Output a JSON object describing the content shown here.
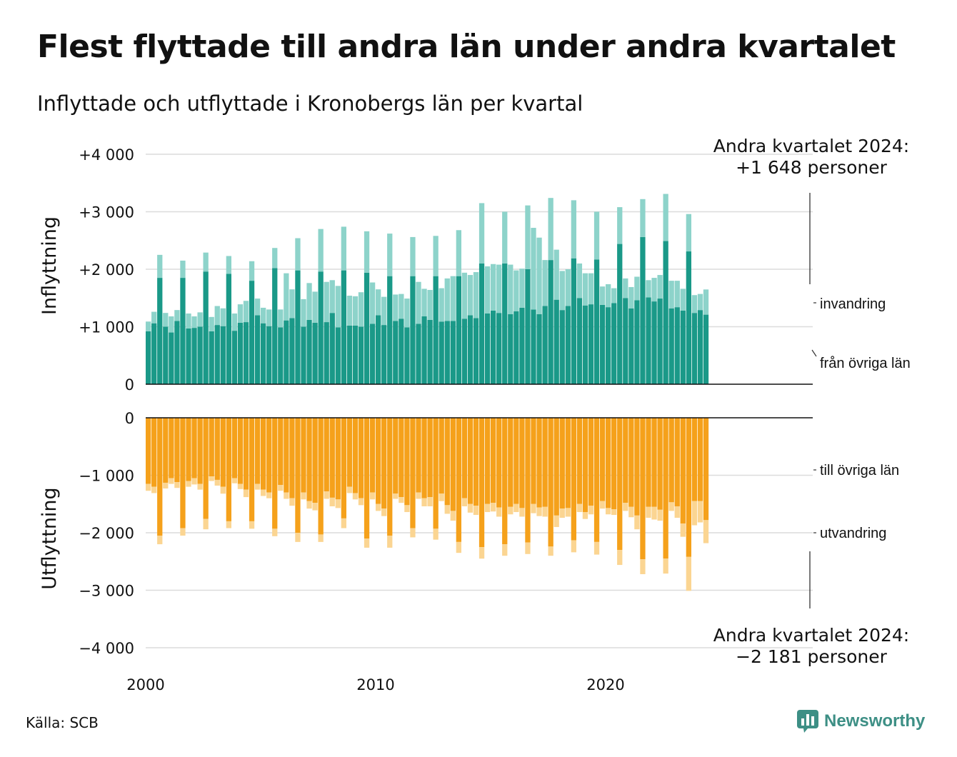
{
  "header": {
    "title": "Flest flyttade till andra län under andra kvartalet",
    "subtitle": "Inflyttade och utflyttade i Kronobergs län per kvartal"
  },
  "footer": {
    "source": "Källa: SCB",
    "logo_text": "Newsworthy"
  },
  "colors": {
    "inflow_domestic": "#1a9988",
    "inflow_immigration": "#8dd3ca",
    "outflow_domestic": "#f5a11b",
    "outflow_emigration": "#fbd592"
  },
  "chart_data": {
    "type": "bar",
    "stacked": true,
    "x_label": "",
    "x_ticks": [
      "2000",
      "2010",
      "2020"
    ],
    "top_panel": {
      "ylabel": "Inflyttning",
      "ylim": [
        0,
        4000
      ],
      "y_ticks": [
        "0",
        "+1 000",
        "+2 000",
        "+3 000",
        "+4 000"
      ],
      "y_tick_values": [
        0,
        1000,
        2000,
        3000,
        4000
      ],
      "series_names": [
        "från övriga län",
        "invandring"
      ],
      "annotation": [
        "Andra kvartalet 2024:",
        "+1 648 personer"
      ]
    },
    "bottom_panel": {
      "ylabel": "Utflyttning",
      "ylim": [
        -4000,
        0
      ],
      "y_ticks": [
        "0",
        "−1 000",
        "−2 000",
        "−3 000",
        "−4 000"
      ],
      "y_tick_values": [
        0,
        -1000,
        -2000,
        -3000,
        -4000
      ],
      "series_names": [
        "till övriga län",
        "utvandring"
      ],
      "annotation": [
        "Andra kvartalet 2024:",
        "−2 181 personer"
      ]
    },
    "quarters": [
      {
        "q": "2000 Q1",
        "in_dom": 920,
        "in_imm": 170,
        "out_dom": 1150,
        "out_emi": 120
      },
      {
        "q": "2000 Q2",
        "in_dom": 1060,
        "in_imm": 200,
        "out_dom": 1200,
        "out_emi": 110
      },
      {
        "q": "2000 Q3",
        "in_dom": 1850,
        "in_imm": 400,
        "out_dom": 2050,
        "out_emi": 150
      },
      {
        "q": "2000 Q4",
        "in_dom": 1000,
        "in_imm": 240,
        "out_dom": 1130,
        "out_emi": 100
      },
      {
        "q": "2001 Q1",
        "in_dom": 900,
        "in_imm": 280,
        "out_dom": 1050,
        "out_emi": 100
      },
      {
        "q": "2001 Q2",
        "in_dom": 1100,
        "in_imm": 190,
        "out_dom": 1120,
        "out_emi": 100
      },
      {
        "q": "2001 Q3",
        "in_dom": 1850,
        "in_imm": 300,
        "out_dom": 1920,
        "out_emi": 130
      },
      {
        "q": "2001 Q4",
        "in_dom": 970,
        "in_imm": 260,
        "out_dom": 1100,
        "out_emi": 100
      },
      {
        "q": "2002 Q1",
        "in_dom": 980,
        "in_imm": 200,
        "out_dom": 1050,
        "out_emi": 110
      },
      {
        "q": "2002 Q2",
        "in_dom": 1000,
        "in_imm": 250,
        "out_dom": 1150,
        "out_emi": 100
      },
      {
        "q": "2002 Q3",
        "in_dom": 1960,
        "in_imm": 330,
        "out_dom": 1760,
        "out_emi": 180
      },
      {
        "q": "2002 Q4",
        "in_dom": 920,
        "in_imm": 250,
        "out_dom": 1020,
        "out_emi": 80
      },
      {
        "q": "2003 Q1",
        "in_dom": 1030,
        "in_imm": 330,
        "out_dom": 1080,
        "out_emi": 100
      },
      {
        "q": "2003 Q2",
        "in_dom": 1010,
        "in_imm": 310,
        "out_dom": 1200,
        "out_emi": 120
      },
      {
        "q": "2003 Q3",
        "in_dom": 1920,
        "in_imm": 310,
        "out_dom": 1800,
        "out_emi": 120
      },
      {
        "q": "2003 Q4",
        "in_dom": 930,
        "in_imm": 300,
        "out_dom": 1050,
        "out_emi": 90
      },
      {
        "q": "2004 Q1",
        "in_dom": 1070,
        "in_imm": 320,
        "out_dom": 1150,
        "out_emi": 90
      },
      {
        "q": "2004 Q2",
        "in_dom": 1080,
        "in_imm": 370,
        "out_dom": 1250,
        "out_emi": 130
      },
      {
        "q": "2004 Q3",
        "in_dom": 1800,
        "in_imm": 340,
        "out_dom": 1800,
        "out_emi": 130
      },
      {
        "q": "2004 Q4",
        "in_dom": 1200,
        "in_imm": 290,
        "out_dom": 1150,
        "out_emi": 100
      },
      {
        "q": "2005 Q1",
        "in_dom": 1060,
        "in_imm": 270,
        "out_dom": 1250,
        "out_emi": 110
      },
      {
        "q": "2005 Q2",
        "in_dom": 1010,
        "in_imm": 290,
        "out_dom": 1300,
        "out_emi": 100
      },
      {
        "q": "2005 Q3",
        "in_dom": 2020,
        "in_imm": 350,
        "out_dom": 1930,
        "out_emi": 130
      },
      {
        "q": "2005 Q4",
        "in_dom": 990,
        "in_imm": 310,
        "out_dom": 1170,
        "out_emi": 100
      },
      {
        "q": "2006 Q1",
        "in_dom": 1110,
        "in_imm": 820,
        "out_dom": 1300,
        "out_emi": 110
      },
      {
        "q": "2006 Q2",
        "in_dom": 1150,
        "in_imm": 500,
        "out_dom": 1400,
        "out_emi": 130
      },
      {
        "q": "2006 Q3",
        "in_dom": 1980,
        "in_imm": 560,
        "out_dom": 2000,
        "out_emi": 160
      },
      {
        "q": "2006 Q4",
        "in_dom": 1000,
        "in_imm": 480,
        "out_dom": 1300,
        "out_emi": 120
      },
      {
        "q": "2007 Q1",
        "in_dom": 1120,
        "in_imm": 640,
        "out_dom": 1450,
        "out_emi": 130
      },
      {
        "q": "2007 Q2",
        "in_dom": 1070,
        "in_imm": 540,
        "out_dom": 1480,
        "out_emi": 130
      },
      {
        "q": "2007 Q3",
        "in_dom": 1960,
        "in_imm": 740,
        "out_dom": 2030,
        "out_emi": 130
      },
      {
        "q": "2007 Q4",
        "in_dom": 1080,
        "in_imm": 700,
        "out_dom": 1280,
        "out_emi": 130
      },
      {
        "q": "2008 Q1",
        "in_dom": 1240,
        "in_imm": 570,
        "out_dom": 1390,
        "out_emi": 150
      },
      {
        "q": "2008 Q2",
        "in_dom": 990,
        "in_imm": 720,
        "out_dom": 1420,
        "out_emi": 150
      },
      {
        "q": "2008 Q3",
        "in_dom": 1980,
        "in_imm": 760,
        "out_dom": 1750,
        "out_emi": 170
      },
      {
        "q": "2008 Q4",
        "in_dom": 1020,
        "in_imm": 520,
        "out_dom": 1200,
        "out_emi": 110
      },
      {
        "q": "2009 Q1",
        "in_dom": 1020,
        "in_imm": 510,
        "out_dom": 1310,
        "out_emi": 110
      },
      {
        "q": "2009 Q2",
        "in_dom": 1000,
        "in_imm": 600,
        "out_dom": 1400,
        "out_emi": 120
      },
      {
        "q": "2009 Q3",
        "in_dom": 1940,
        "in_imm": 720,
        "out_dom": 2100,
        "out_emi": 160
      },
      {
        "q": "2009 Q4",
        "in_dom": 1050,
        "in_imm": 720,
        "out_dom": 1300,
        "out_emi": 120
      },
      {
        "q": "2010 Q1",
        "in_dom": 1200,
        "in_imm": 450,
        "out_dom": 1500,
        "out_emi": 120
      },
      {
        "q": "2010 Q2",
        "in_dom": 1030,
        "in_imm": 490,
        "out_dom": 1580,
        "out_emi": 130
      },
      {
        "q": "2010 Q3",
        "in_dom": 1880,
        "in_imm": 740,
        "out_dom": 2050,
        "out_emi": 210
      },
      {
        "q": "2010 Q4",
        "in_dom": 1100,
        "in_imm": 460,
        "out_dom": 1320,
        "out_emi": 90
      },
      {
        "q": "2011 Q1",
        "in_dom": 1140,
        "in_imm": 430,
        "out_dom": 1380,
        "out_emi": 100
      },
      {
        "q": "2011 Q2",
        "in_dom": 990,
        "in_imm": 500,
        "out_dom": 1520,
        "out_emi": 120
      },
      {
        "q": "2011 Q3",
        "in_dom": 1880,
        "in_imm": 680,
        "out_dom": 1920,
        "out_emi": 160
      },
      {
        "q": "2011 Q4",
        "in_dom": 1050,
        "in_imm": 730,
        "out_dom": 1300,
        "out_emi": 110
      },
      {
        "q": "2012 Q1",
        "in_dom": 1180,
        "in_imm": 480,
        "out_dom": 1400,
        "out_emi": 140
      },
      {
        "q": "2012 Q2",
        "in_dom": 1120,
        "in_imm": 520,
        "out_dom": 1380,
        "out_emi": 160
      },
      {
        "q": "2012 Q3",
        "in_dom": 1880,
        "in_imm": 700,
        "out_dom": 1930,
        "out_emi": 190
      },
      {
        "q": "2012 Q4",
        "in_dom": 1090,
        "in_imm": 580,
        "out_dom": 1320,
        "out_emi": 130
      },
      {
        "q": "2013 Q1",
        "in_dom": 1100,
        "in_imm": 740,
        "out_dom": 1520,
        "out_emi": 150
      },
      {
        "q": "2013 Q2",
        "in_dom": 1100,
        "in_imm": 780,
        "out_dom": 1620,
        "out_emi": 170
      },
      {
        "q": "2013 Q3",
        "in_dom": 1880,
        "in_imm": 800,
        "out_dom": 2160,
        "out_emi": 190
      },
      {
        "q": "2013 Q4",
        "in_dom": 1140,
        "in_imm": 800,
        "out_dom": 1400,
        "out_emi": 140
      },
      {
        "q": "2014 Q1",
        "in_dom": 1200,
        "in_imm": 700,
        "out_dom": 1500,
        "out_emi": 150
      },
      {
        "q": "2014 Q2",
        "in_dom": 1150,
        "in_imm": 800,
        "out_dom": 1530,
        "out_emi": 160
      },
      {
        "q": "2014 Q3",
        "in_dom": 2100,
        "in_imm": 1050,
        "out_dom": 2250,
        "out_emi": 200
      },
      {
        "q": "2014 Q4",
        "in_dom": 1230,
        "in_imm": 820,
        "out_dom": 1500,
        "out_emi": 140
      },
      {
        "q": "2015 Q1",
        "in_dom": 1280,
        "in_imm": 810,
        "out_dom": 1480,
        "out_emi": 150
      },
      {
        "q": "2015 Q2",
        "in_dom": 1240,
        "in_imm": 840,
        "out_dom": 1560,
        "out_emi": 160
      },
      {
        "q": "2015 Q3",
        "in_dom": 2100,
        "in_imm": 900,
        "out_dom": 2200,
        "out_emi": 200
      },
      {
        "q": "2015 Q4",
        "in_dom": 1220,
        "in_imm": 860,
        "out_dom": 1550,
        "out_emi": 130
      },
      {
        "q": "2016 Q1",
        "in_dom": 1270,
        "in_imm": 710,
        "out_dom": 1500,
        "out_emi": 140
      },
      {
        "q": "2016 Q2",
        "in_dom": 1330,
        "in_imm": 680,
        "out_dom": 1570,
        "out_emi": 150
      },
      {
        "q": "2016 Q3",
        "in_dom": 2000,
        "in_imm": 1110,
        "out_dom": 2170,
        "out_emi": 200
      },
      {
        "q": "2016 Q4",
        "in_dom": 1300,
        "in_imm": 1420,
        "out_dom": 1500,
        "out_emi": 160
      },
      {
        "q": "2017 Q1",
        "in_dom": 1220,
        "in_imm": 1330,
        "out_dom": 1560,
        "out_emi": 150
      },
      {
        "q": "2017 Q2",
        "in_dom": 1360,
        "in_imm": 800,
        "out_dom": 1550,
        "out_emi": 170
      },
      {
        "q": "2017 Q3",
        "in_dom": 2160,
        "in_imm": 1080,
        "out_dom": 2240,
        "out_emi": 160
      },
      {
        "q": "2017 Q4",
        "in_dom": 1470,
        "in_imm": 870,
        "out_dom": 1700,
        "out_emi": 200
      },
      {
        "q": "2018 Q1",
        "in_dom": 1290,
        "in_imm": 680,
        "out_dom": 1580,
        "out_emi": 160
      },
      {
        "q": "2018 Q2",
        "in_dom": 1360,
        "in_imm": 640,
        "out_dom": 1570,
        "out_emi": 150
      },
      {
        "q": "2018 Q3",
        "in_dom": 2190,
        "in_imm": 1010,
        "out_dom": 2130,
        "out_emi": 210
      },
      {
        "q": "2018 Q4",
        "in_dom": 1500,
        "in_imm": 600,
        "out_dom": 1500,
        "out_emi": 140
      },
      {
        "q": "2019 Q1",
        "in_dom": 1370,
        "in_imm": 560,
        "out_dom": 1640,
        "out_emi": 120
      },
      {
        "q": "2019 Q2",
        "in_dom": 1390,
        "in_imm": 540,
        "out_dom": 1530,
        "out_emi": 150
      },
      {
        "q": "2019 Q3",
        "in_dom": 2170,
        "in_imm": 830,
        "out_dom": 2160,
        "out_emi": 220
      },
      {
        "q": "2019 Q4",
        "in_dom": 1380,
        "in_imm": 320,
        "out_dom": 1450,
        "out_emi": 130
      },
      {
        "q": "2020 Q1",
        "in_dom": 1340,
        "in_imm": 400,
        "out_dom": 1570,
        "out_emi": 110
      },
      {
        "q": "2020 Q2",
        "in_dom": 1410,
        "in_imm": 260,
        "out_dom": 1590,
        "out_emi": 100
      },
      {
        "q": "2020 Q3",
        "in_dom": 2440,
        "in_imm": 640,
        "out_dom": 2300,
        "out_emi": 260
      },
      {
        "q": "2020 Q4",
        "in_dom": 1500,
        "in_imm": 340,
        "out_dom": 1480,
        "out_emi": 140
      },
      {
        "q": "2021 Q1",
        "in_dom": 1320,
        "in_imm": 370,
        "out_dom": 1550,
        "out_emi": 180
      },
      {
        "q": "2021 Q2",
        "in_dom": 1460,
        "in_imm": 410,
        "out_dom": 1700,
        "out_emi": 240
      },
      {
        "q": "2021 Q3",
        "in_dom": 2560,
        "in_imm": 660,
        "out_dom": 2460,
        "out_emi": 260
      },
      {
        "q": "2021 Q4",
        "in_dom": 1510,
        "in_imm": 300,
        "out_dom": 1550,
        "out_emi": 190
      },
      {
        "q": "2022 Q1",
        "in_dom": 1440,
        "in_imm": 410,
        "out_dom": 1550,
        "out_emi": 220
      },
      {
        "q": "2022 Q2",
        "in_dom": 1490,
        "in_imm": 410,
        "out_dom": 1600,
        "out_emi": 190
      },
      {
        "q": "2022 Q3",
        "in_dom": 2490,
        "in_imm": 820,
        "out_dom": 2450,
        "out_emi": 260
      },
      {
        "q": "2022 Q4",
        "in_dom": 1320,
        "in_imm": 480,
        "out_dom": 1470,
        "out_emi": 150
      },
      {
        "q": "2023 Q1",
        "in_dom": 1340,
        "in_imm": 460,
        "out_dom": 1540,
        "out_emi": 200
      },
      {
        "q": "2023 Q2",
        "in_dom": 1280,
        "in_imm": 380,
        "out_dom": 1840,
        "out_emi": 230
      },
      {
        "q": "2023 Q3",
        "in_dom": 2310,
        "in_imm": 650,
        "out_dom": 2420,
        "out_emi": 590
      },
      {
        "q": "2023 Q4",
        "in_dom": 1240,
        "in_imm": 310,
        "out_dom": 1450,
        "out_emi": 420
      },
      {
        "q": "2024 Q1",
        "in_dom": 1290,
        "in_imm": 280,
        "out_dom": 1450,
        "out_emi": 370
      },
      {
        "q": "2024 Q2",
        "in_dom": 1210,
        "in_imm": 438,
        "out_dom": 1780,
        "out_emi": 401
      }
    ]
  }
}
